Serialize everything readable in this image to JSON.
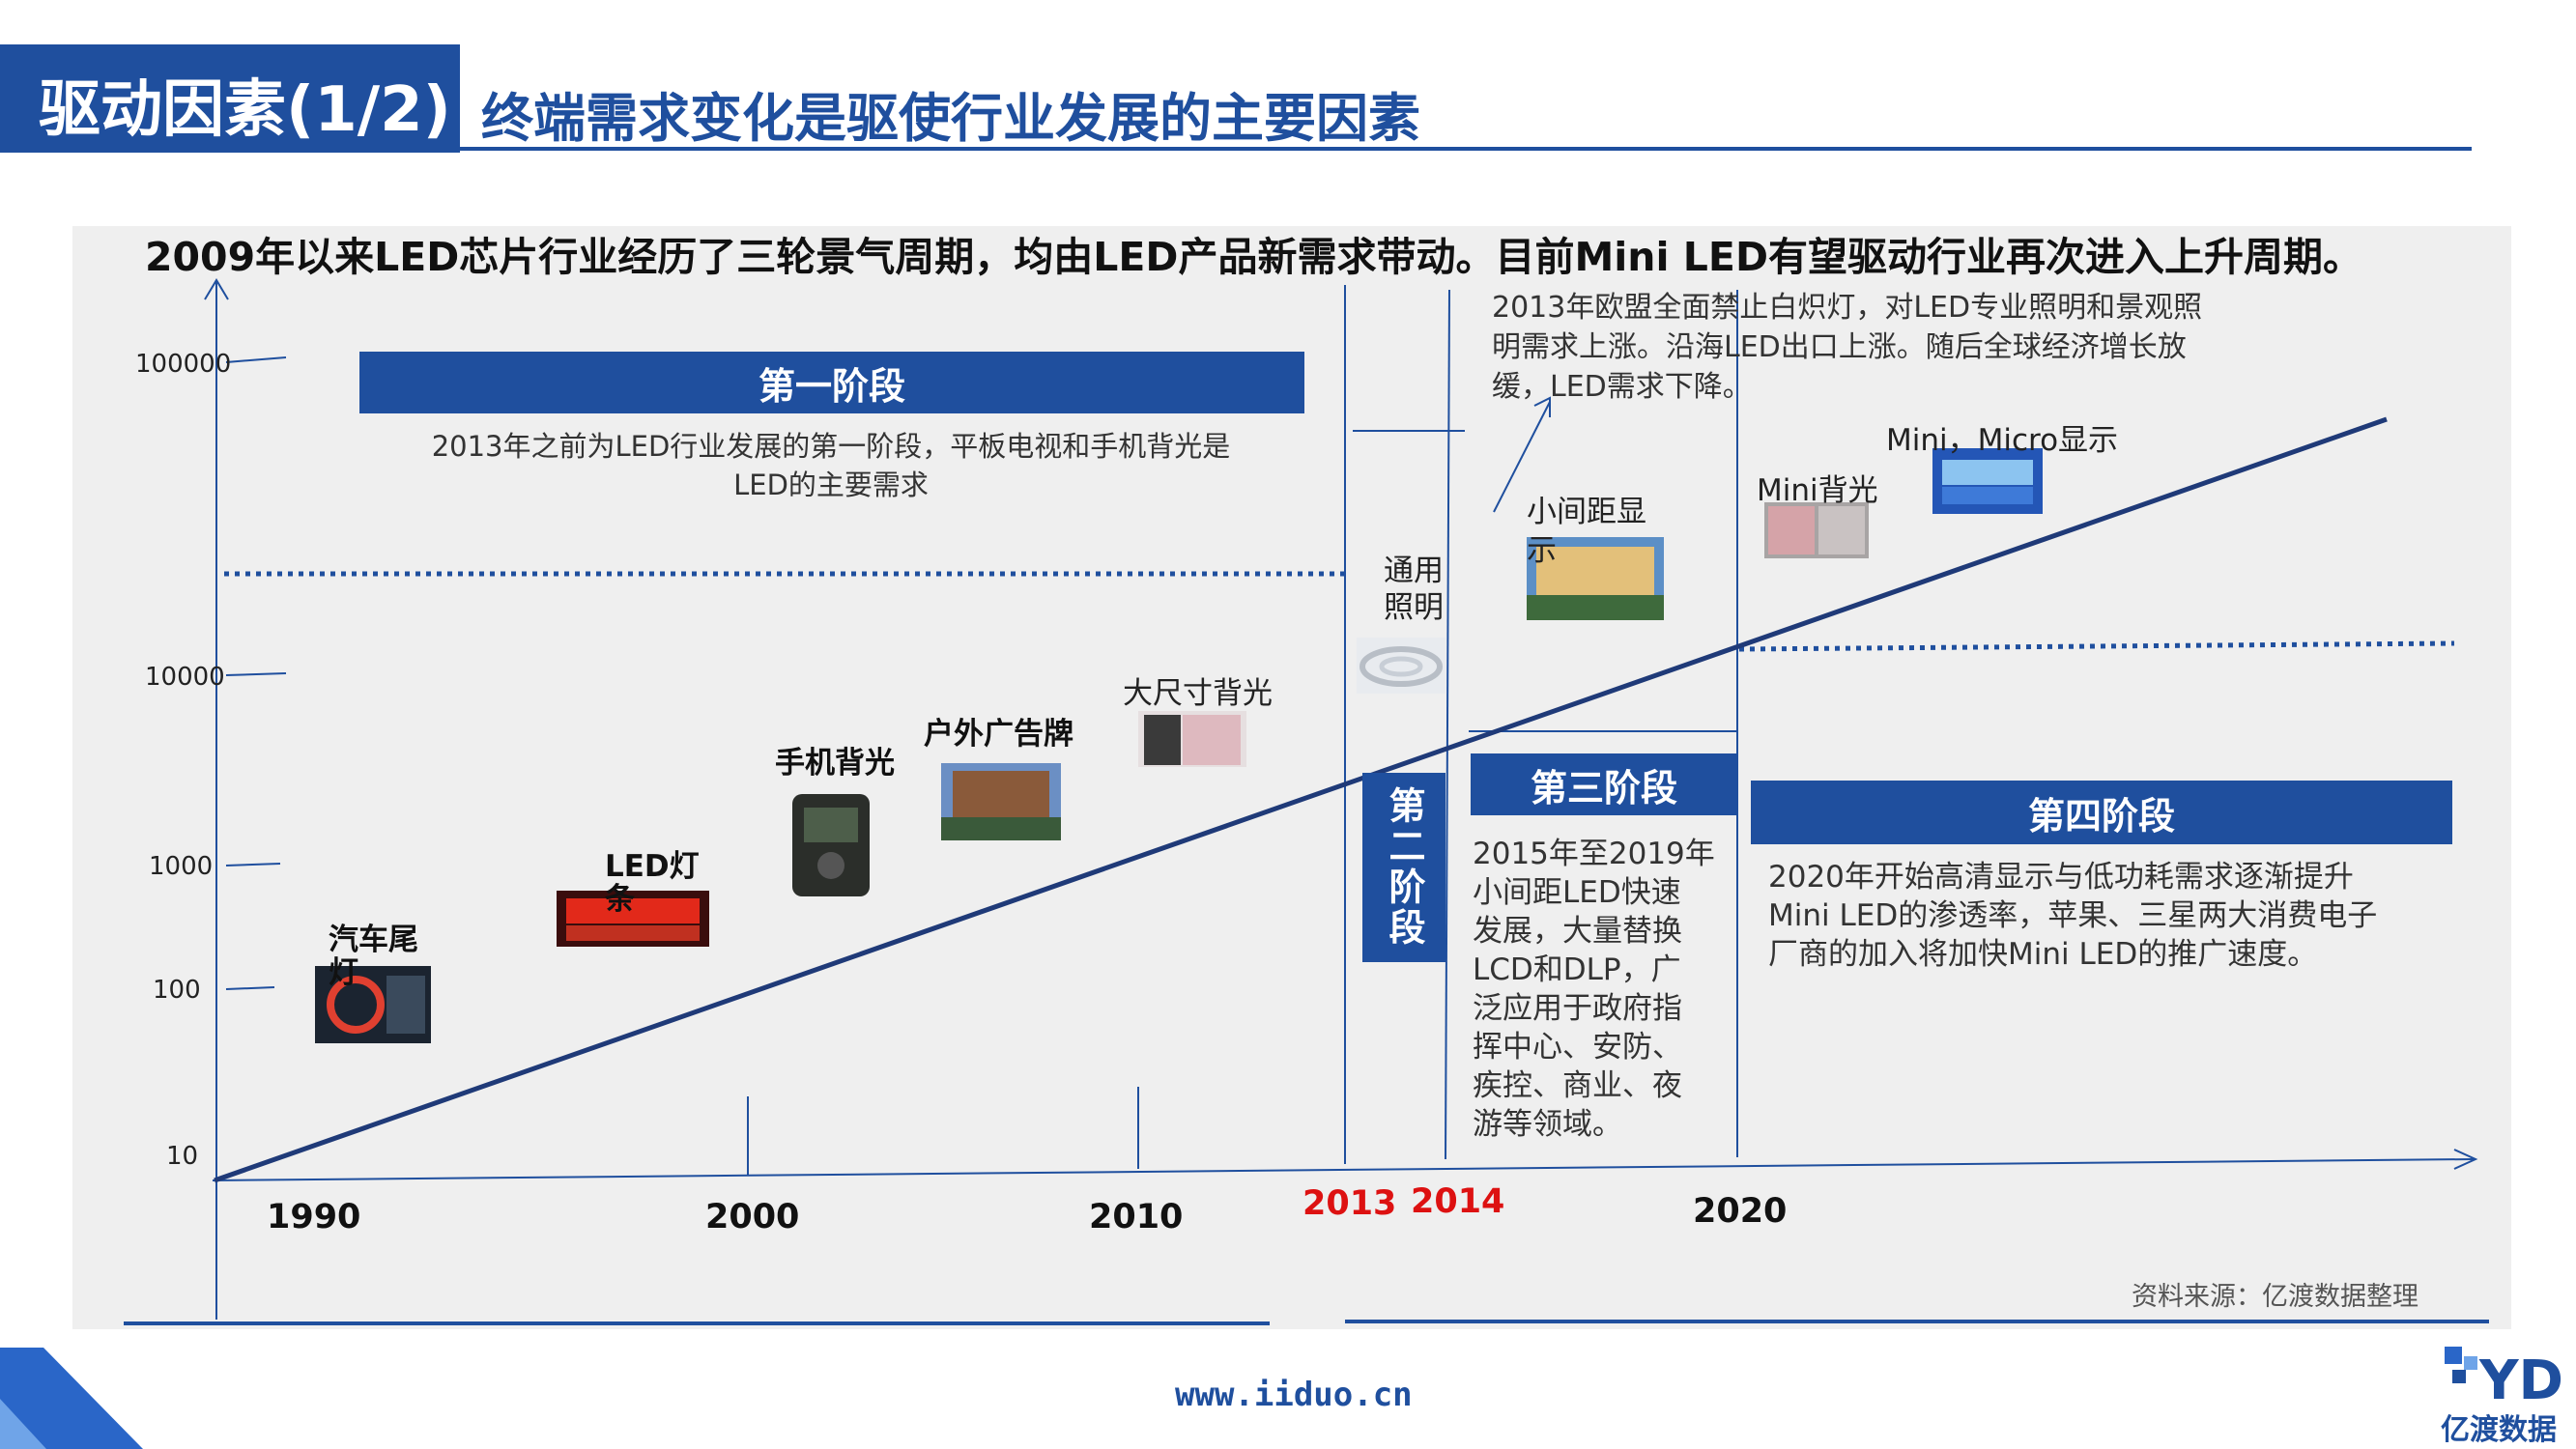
{
  "header": {
    "tag": "驱动因素(1/2)",
    "title": "终端需求变化是驱使行业发展的主要因素"
  },
  "headline": "2009年以来LED芯片行业经历了三轮景气周期，均由LED产品新需求带动。目前Mini LED有望驱动行业再次进入上升周期。",
  "y_ticks": [
    "100000",
    "10000",
    "1000",
    "100",
    "10"
  ],
  "x_ticks": [
    "1990",
    "2000",
    "2010",
    "2013",
    "2014",
    "2020"
  ],
  "stages": {
    "s1": {
      "title": "第一阶段",
      "desc1": "2013年之前为LED行业发展的第一阶段，平板电视和手机背光是",
      "desc2": "LED的主要需求"
    },
    "s2": {
      "title": "第二阶段"
    },
    "s3": {
      "title": "第三阶段",
      "desc": [
        "2015年至2019年",
        "小间距LED快速",
        "发展，大量替换",
        "LCD和DLP，广",
        "泛应用于政府指",
        "挥中心、安防、",
        "疾控、商业、夜",
        "游等领域。"
      ]
    },
    "s4": {
      "title": "第四阶段",
      "desc": [
        "2020年开始高清显示与低功耗需求逐渐提升",
        "Mini LED的渗透率，苹果、三星两大消费电子",
        "厂商的加入将加快Mini LED的推广速度。"
      ]
    }
  },
  "note_2013": [
    "2013年欧盟全面禁止白炽灯，对LED专业照明和景观照",
    "明需求上涨。沿海LED出口上涨。随后全球经济增长放",
    "缓，LED需求下降。"
  ],
  "products": {
    "tail_light": "汽车尾灯",
    "led_strip": "LED灯条",
    "phone_backlight": "手机背光",
    "outdoor_billboard": "户外广告牌",
    "large_backlight": "大尺寸背光",
    "general_lighting": "通用照明",
    "small_pitch": "小间距显示",
    "mini_backlight": "Mini背光",
    "mini_micro": "Mini，Micro显示"
  },
  "source": "资料来源：亿渡数据整理",
  "footer_url": "www.iiduo.cn",
  "logo": {
    "name": "亿渡数据"
  },
  "colors": {
    "brand": "#1f4f9e",
    "accent_red": "#d11111",
    "panel": "#efefef"
  }
}
